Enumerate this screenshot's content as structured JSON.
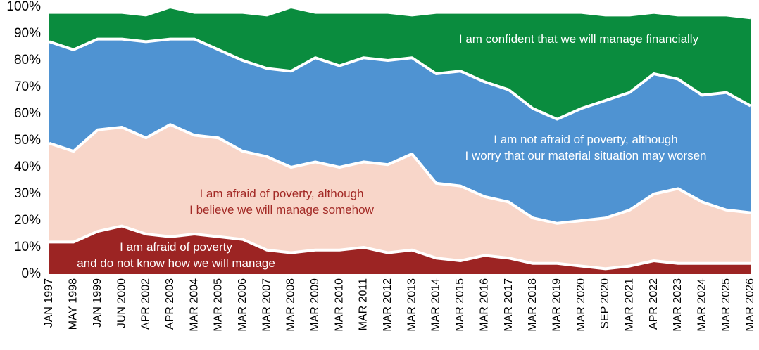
{
  "chart_data": {
    "type": "stacked_area",
    "categories": [
      "JAN 1997",
      "MAY 1998",
      "JAN 1999",
      "JUN 2000",
      "APR 2002",
      "APR 2003",
      "MAR 2004",
      "MAR 2005",
      "MAR 2006",
      "MAR 2007",
      "MAR 2008",
      "MAR 2009",
      "MAR 2010",
      "MAR 2011",
      "MAR 2012",
      "MAR 2013",
      "MAR 2014",
      "MAR 2015",
      "MAR 2016",
      "MAR 2017",
      "MAR 2018",
      "MAR 2019",
      "MAR 2020",
      "SEP 2020",
      "MAR 2021",
      "APR 2022",
      "MAR 2023",
      "MAR 2024",
      "MAR 2025",
      "MAR 2026"
    ],
    "series": [
      {
        "name": "I am afraid of poverty\nand do not know how we will manage",
        "color": "#9c2423",
        "label_color": "#ffffff",
        "values": [
          12,
          12,
          16,
          18,
          15,
          14,
          15,
          14,
          13,
          9,
          8,
          9,
          9,
          10,
          8,
          9,
          6,
          5,
          7,
          6,
          4,
          4,
          3,
          2,
          3,
          5,
          4,
          4,
          4,
          4
        ]
      },
      {
        "name": "I am afraid of poverty, although\nI believe we will manage somehow",
        "color": "#f8d6c9",
        "label_color": "#a32a26",
        "values": [
          37,
          34,
          38,
          37,
          36,
          42,
          37,
          37,
          33,
          35,
          32,
          33,
          31,
          32,
          33,
          36,
          28,
          28,
          22,
          21,
          17,
          15,
          17,
          19,
          21,
          25,
          28,
          23,
          20,
          19
        ]
      },
      {
        "name": "I am not afraid of poverty, although\nI worry that our material situation may worsen",
        "color": "#4f93d2",
        "label_color": "#ffffff",
        "values": [
          38,
          38,
          34,
          33,
          36,
          32,
          36,
          33,
          34,
          33,
          36,
          39,
          38,
          39,
          39,
          36,
          41,
          43,
          43,
          42,
          41,
          39,
          42,
          44,
          44,
          45,
          41,
          40,
          44,
          40
        ]
      },
      {
        "name": "I am confident that we will manage financially",
        "color": "#0a8c3e",
        "label_color": "#ffffff",
        "values": [
          11,
          14,
          10,
          10,
          10,
          12,
          10,
          14,
          18,
          20,
          24,
          17,
          20,
          17,
          18,
          16,
          23,
          22,
          26,
          29,
          36,
          40,
          36,
          32,
          29,
          23,
          24,
          30,
          29,
          33
        ]
      }
    ],
    "ylim": [
      0,
      100
    ],
    "yticks": [
      {
        "value": 0,
        "label": "0%"
      },
      {
        "value": 10,
        "label": "10%"
      },
      {
        "value": 20,
        "label": "20%"
      },
      {
        "value": 30,
        "label": "30%"
      },
      {
        "value": 40,
        "label": "40%"
      },
      {
        "value": 50,
        "label": "50%"
      },
      {
        "value": 60,
        "label": "60%"
      },
      {
        "value": 70,
        "label": "70%"
      },
      {
        "value": 80,
        "label": "80%"
      },
      {
        "value": 90,
        "label": "90%"
      },
      {
        "value": 100,
        "label": "100%"
      }
    ]
  }
}
